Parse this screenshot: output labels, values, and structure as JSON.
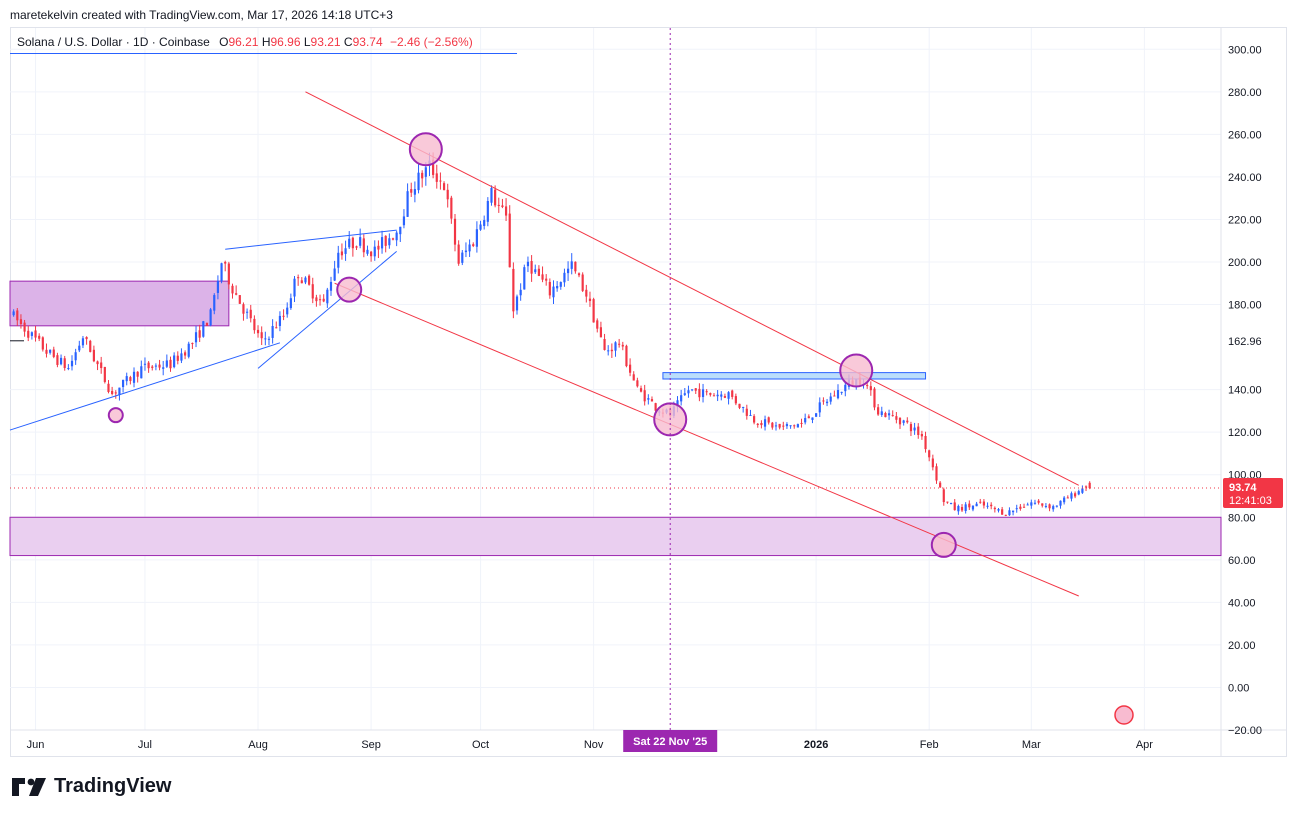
{
  "header": {
    "attribution": "maretekelvin created with TradingView.com, Mar 17, 2026 14:18 UTC+3"
  },
  "legend": {
    "symbol": "Solana / U.S. Dollar · 1D · Coinbase",
    "o_label": "O",
    "o_value": "96.21",
    "h_label": "H",
    "h_value": "96.96",
    "l_label": "L",
    "l_value": "93.21",
    "c_label": "C",
    "c_value": "93.74",
    "change": "−2.46 (−2.56%)"
  },
  "price_tag": {
    "price": "93.74",
    "countdown": "12:41:03"
  },
  "marker_label": "162.96",
  "crosshair_date": "Sat 22 Nov '25",
  "footer": {
    "brand": "TradingView"
  },
  "colors": {
    "up": "#2962ff",
    "down": "#f23645",
    "zone": "#e1bee7",
    "zone_border": "#9c27b0",
    "trendline_red": "#f23645",
    "trendline_blue": "#2962ff",
    "circle": "#9c27b0",
    "circle_fill": "#f8bbd0"
  },
  "chart_data": {
    "type": "candlestick",
    "ylim": [
      -20,
      310
    ],
    "y_ticks": [
      "300.00",
      "280.00",
      "260.00",
      "240.00",
      "220.00",
      "200.00",
      "180.00",
      "140.00",
      "120.00",
      "100.00",
      "80.00",
      "60.00",
      "40.00",
      "20.00",
      "0.00",
      "−20.00"
    ],
    "y_tick_values": [
      300,
      280,
      260,
      240,
      220,
      200,
      180,
      140,
      120,
      100,
      80,
      60,
      40,
      20,
      0,
      -20
    ],
    "x_ticks": [
      "Jun",
      "Jul",
      "Aug",
      "Sep",
      "Oct",
      "Nov",
      "2026",
      "Feb",
      "Mar",
      "Apr"
    ],
    "x_tick_dates": [
      "2025-06-01",
      "2025-07-01",
      "2025-08-01",
      "2025-09-01",
      "2025-10-01",
      "2025-11-01",
      "2026-01-01",
      "2026-02-01",
      "2026-03-01",
      "2026-04-01"
    ],
    "x_range": [
      "2025-05-25",
      "2026-04-22"
    ],
    "price_path": [
      [
        "2025-05-25",
        176
      ],
      [
        "2025-06-04",
        158
      ],
      [
        "2025-06-10",
        150
      ],
      [
        "2025-06-14",
        165
      ],
      [
        "2025-06-22",
        138
      ],
      [
        "2025-06-30",
        150
      ],
      [
        "2025-07-08",
        152
      ],
      [
        "2025-07-14",
        162
      ],
      [
        "2025-07-19",
        175
      ],
      [
        "2025-07-22",
        200
      ],
      [
        "2025-07-25",
        188
      ],
      [
        "2025-08-02",
        162
      ],
      [
        "2025-08-08",
        175
      ],
      [
        "2025-08-12",
        195
      ],
      [
        "2025-08-14",
        190
      ],
      [
        "2025-08-19",
        180
      ],
      [
        "2025-08-23",
        205
      ],
      [
        "2025-08-28",
        210
      ],
      [
        "2025-09-02",
        205
      ],
      [
        "2025-09-08",
        215
      ],
      [
        "2025-09-12",
        235
      ],
      [
        "2025-09-17",
        245
      ],
      [
        "2025-09-21",
        236
      ],
      [
        "2025-09-25",
        200
      ],
      [
        "2025-09-29",
        210
      ],
      [
        "2025-10-04",
        232
      ],
      [
        "2025-10-08",
        220
      ],
      [
        "2025-10-10",
        178
      ],
      [
        "2025-10-14",
        200
      ],
      [
        "2025-10-20",
        186
      ],
      [
        "2025-10-26",
        198
      ],
      [
        "2025-10-30",
        185
      ],
      [
        "2025-11-04",
        158
      ],
      [
        "2025-11-08",
        162
      ],
      [
        "2025-11-13",
        140
      ],
      [
        "2025-11-18",
        132
      ],
      [
        "2025-11-22",
        128
      ],
      [
        "2025-11-27",
        140
      ],
      [
        "2025-12-02",
        138
      ],
      [
        "2025-12-08",
        138
      ],
      [
        "2025-12-15",
        126
      ],
      [
        "2025-12-22",
        122
      ],
      [
        "2025-12-28",
        124
      ],
      [
        "2026-01-04",
        135
      ],
      [
        "2026-01-10",
        143
      ],
      [
        "2026-01-14",
        145
      ],
      [
        "2026-01-18",
        130
      ],
      [
        "2026-01-25",
        125
      ],
      [
        "2026-01-30",
        118
      ],
      [
        "2026-02-02",
        104
      ],
      [
        "2026-02-05",
        88
      ],
      [
        "2026-02-08",
        84
      ],
      [
        "2026-02-15",
        86
      ],
      [
        "2026-02-22",
        82
      ],
      [
        "2026-03-01",
        87
      ],
      [
        "2026-03-07",
        85
      ],
      [
        "2026-03-12",
        90
      ],
      [
        "2026-03-16",
        95
      ],
      [
        "2026-03-17",
        93.74
      ]
    ],
    "last": {
      "open": 96.21,
      "high": 96.96,
      "low": 93.21,
      "close": 93.74
    },
    "annotations": {
      "zones": [
        {
          "from": "2025-05-25",
          "to": "2025-07-24",
          "low": 170,
          "high": 191
        },
        {
          "from": "2025-05-25",
          "to": "2026-04-22",
          "low": 62,
          "high": 80
        },
        {
          "from": "2025-11-20",
          "to": "2026-01-31",
          "low": 145,
          "high": 148
        }
      ],
      "red_lines": [
        [
          [
            "2025-08-14",
            280
          ],
          [
            "2026-03-14",
            95
          ]
        ],
        [
          [
            "2025-08-22",
            190
          ],
          [
            "2026-03-14",
            43
          ]
        ]
      ],
      "blue_lines": [
        [
          [
            "2025-05-25",
            298
          ],
          [
            "2025-10-11",
            298
          ]
        ],
        [
          [
            "2025-05-25",
            121
          ],
          [
            "2025-08-07",
            162
          ]
        ],
        [
          [
            "2025-07-23",
            206
          ],
          [
            "2025-09-08",
            215
          ]
        ],
        [
          [
            "2025-08-01",
            150
          ],
          [
            "2025-09-08",
            205
          ]
        ]
      ],
      "circles": [
        {
          "date": "2025-06-23",
          "value": 128,
          "size": "small"
        },
        {
          "date": "2025-08-26",
          "value": 187,
          "size": "medium"
        },
        {
          "date": "2025-09-16",
          "value": 253,
          "size": "large"
        },
        {
          "date": "2025-11-22",
          "value": 126,
          "size": "large"
        },
        {
          "date": "2026-01-12",
          "value": 149,
          "size": "large"
        },
        {
          "date": "2026-02-05",
          "value": 67,
          "size": "medium"
        }
      ]
    }
  }
}
